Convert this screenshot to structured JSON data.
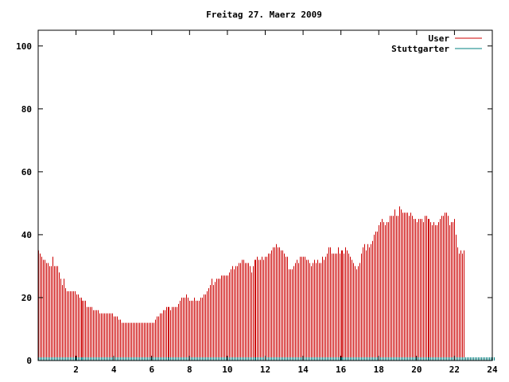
{
  "chart_data": {
    "type": "bar",
    "title": "Freitag 27. Maerz 2009",
    "xlabel": "",
    "ylabel": "",
    "xlim": [
      0,
      24
    ],
    "ylim": [
      0,
      105
    ],
    "x_ticks": [
      2,
      4,
      6,
      8,
      10,
      12,
      14,
      16,
      18,
      20,
      22,
      24
    ],
    "y_ticks": [
      0,
      20,
      40,
      60,
      80,
      100
    ],
    "grid": false,
    "legend_position": "top-right",
    "sample_interval_hours": 0.0833,
    "series": [
      {
        "name": "User",
        "color": "#cc0000",
        "values": [
          35,
          34,
          33,
          32,
          32,
          31,
          31,
          30,
          30,
          33,
          30,
          30,
          30,
          28,
          26,
          24,
          26,
          23,
          22,
          22,
          22,
          22,
          22,
          22,
          21,
          21,
          20,
          20,
          19,
          19,
          19,
          17,
          17,
          17,
          17,
          16,
          16,
          16,
          16,
          15,
          15,
          15,
          15,
          15,
          15,
          15,
          15,
          15,
          14,
          14,
          14,
          13,
          13,
          12,
          12,
          12,
          12,
          12,
          12,
          12,
          12,
          12,
          12,
          12,
          12,
          12,
          12,
          12,
          12,
          12,
          12,
          12,
          12,
          12,
          13,
          14,
          14,
          15,
          15,
          16,
          16,
          17,
          17,
          17,
          16,
          17,
          17,
          17,
          17,
          18,
          19,
          20,
          20,
          20,
          21,
          20,
          19,
          19,
          19,
          20,
          19,
          19,
          19,
          20,
          20,
          21,
          21,
          22,
          23,
          24,
          26,
          24,
          25,
          26,
          26,
          26,
          27,
          27,
          27,
          27,
          27,
          28,
          29,
          30,
          29,
          30,
          30,
          31,
          31,
          32,
          32,
          31,
          31,
          31,
          30,
          28,
          30,
          32,
          32,
          33,
          32,
          32,
          33,
          32,
          33,
          33,
          34,
          34,
          35,
          36,
          36,
          37,
          36,
          36,
          35,
          35,
          34,
          33,
          33,
          29,
          29,
          29,
          30,
          31,
          32,
          31,
          33,
          33,
          33,
          33,
          32,
          32,
          31,
          30,
          31,
          32,
          31,
          32,
          31,
          31,
          33,
          32,
          33,
          34,
          36,
          36,
          34,
          34,
          34,
          34,
          36,
          34,
          35,
          35,
          34,
          36,
          35,
          34,
          33,
          32,
          31,
          30,
          29,
          30,
          31,
          34,
          36,
          37,
          35,
          37,
          36,
          37,
          38,
          40,
          41,
          41,
          43,
          44,
          45,
          44,
          43,
          44,
          44,
          46,
          46,
          46,
          48,
          46,
          46,
          49,
          48,
          47,
          47,
          47,
          47,
          46,
          47,
          46,
          45,
          45,
          44,
          45,
          45,
          45,
          44,
          46,
          46,
          45,
          45,
          44,
          43,
          44,
          43,
          43,
          44,
          45,
          46,
          46,
          47,
          47,
          46,
          43,
          44,
          44,
          45,
          40,
          36,
          34,
          35,
          34,
          35
        ]
      },
      {
        "name": "Stuttgarter",
        "color": "#008080",
        "values": [
          1,
          1,
          1,
          1,
          1,
          1,
          1,
          1,
          1,
          1,
          1,
          1,
          1,
          1,
          1,
          1,
          1,
          1,
          1,
          1,
          1,
          1,
          1,
          1,
          1,
          1,
          1,
          1,
          1,
          1,
          1,
          1,
          1,
          1,
          1,
          1,
          1,
          1,
          1,
          1,
          1,
          1,
          1,
          1,
          1,
          1,
          1,
          1,
          1,
          1,
          1,
          1,
          1,
          1,
          1,
          1,
          1,
          1,
          1,
          1,
          1,
          1,
          1,
          1,
          1,
          1,
          1,
          1,
          1,
          1,
          1,
          1,
          1,
          1,
          1,
          1,
          1,
          1,
          1,
          1,
          1,
          1,
          1,
          1,
          1,
          1,
          1,
          1,
          1,
          1,
          1,
          1,
          1,
          1,
          1,
          1,
          1,
          1,
          1,
          1,
          1,
          1,
          1,
          1,
          1,
          1,
          1,
          1,
          1,
          1,
          1,
          1,
          1,
          1,
          1,
          1,
          1,
          1,
          1,
          1,
          1,
          1,
          1,
          1,
          1,
          1,
          1,
          1,
          1,
          1,
          1,
          1,
          1,
          1,
          1,
          1,
          1,
          1,
          1,
          1,
          1,
          1,
          1,
          1,
          1,
          1,
          1,
          1,
          1,
          1,
          1,
          1,
          1,
          1,
          1,
          1,
          1,
          1,
          1,
          1,
          1,
          1,
          1,
          1,
          1,
          1,
          1,
          1,
          1,
          1,
          1,
          1,
          1,
          1,
          1,
          1,
          1,
          1,
          1,
          1,
          1,
          1,
          1,
          1,
          1,
          1,
          1,
          1,
          1,
          1,
          1,
          1,
          1,
          1,
          1,
          1,
          1,
          1,
          1,
          1,
          1,
          1,
          1,
          1,
          1,
          1,
          1,
          1,
          1,
          1,
          1,
          1,
          1,
          1,
          1,
          1,
          1,
          1,
          1,
          1,
          1,
          1,
          1,
          1,
          1,
          1,
          1,
          1,
          1,
          1,
          1,
          1,
          1,
          1,
          1,
          1,
          1,
          1,
          1,
          1,
          1,
          1,
          1,
          1,
          1,
          1,
          1,
          1,
          1,
          1,
          1,
          1,
          1,
          1,
          1,
          1,
          1,
          1,
          1,
          1,
          1,
          1,
          1,
          1,
          1,
          1,
          1,
          1,
          1,
          1,
          1,
          1,
          1,
          1,
          1,
          1,
          1,
          1,
          1,
          1,
          1,
          1,
          1,
          1,
          1,
          1,
          1,
          1,
          1,
          1
        ]
      }
    ]
  }
}
